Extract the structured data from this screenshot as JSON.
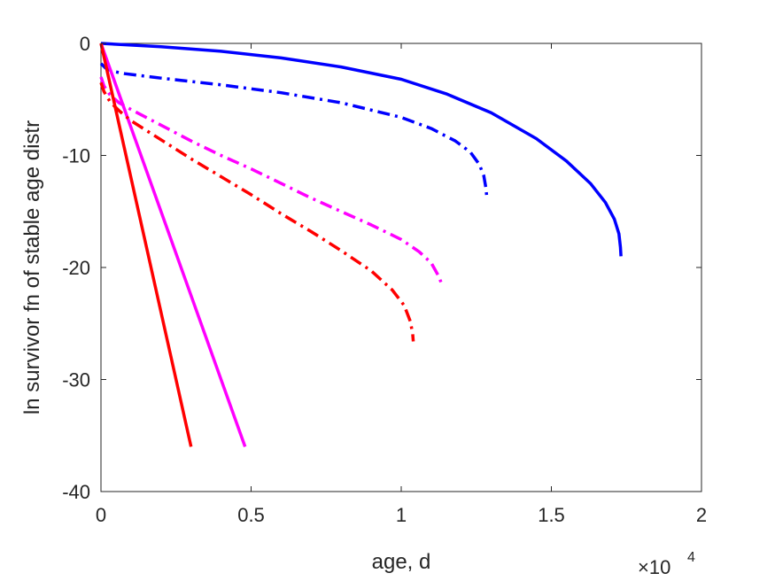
{
  "chart_data": {
    "type": "line",
    "xlabel": "age, d",
    "ylabel": "ln survivor fn of stable age distr",
    "x_exponent_label": {
      "base": "×10",
      "power": "4"
    },
    "xlim": [
      0,
      20000
    ],
    "ylim": [
      -40,
      0
    ],
    "x_ticks": [
      0,
      5000,
      10000,
      15000,
      20000
    ],
    "x_tick_labels": [
      "0",
      "0.5",
      "1",
      "1.5",
      "2"
    ],
    "y_ticks": [
      0,
      -10,
      -20,
      -30,
      -40
    ],
    "y_tick_labels": [
      "0",
      "-10",
      "-20",
      "-30",
      "-40"
    ],
    "grid": false,
    "series": [
      {
        "color": "#0000ff",
        "style": "solid",
        "x": [
          0,
          2000,
          4000,
          6000,
          8000,
          10000,
          11500,
          13000,
          14500,
          15500,
          16300,
          16800,
          17100,
          17250,
          17300,
          17320
        ],
        "y": [
          0,
          -0.3,
          -0.7,
          -1.3,
          -2.1,
          -3.2,
          -4.5,
          -6.2,
          -8.5,
          -10.5,
          -12.5,
          -14.2,
          -15.7,
          -17.0,
          -18.2,
          -19
        ]
      },
      {
        "color": "#0000ff",
        "style": "dashdot",
        "x": [
          0,
          150,
          400,
          800,
          2000,
          4000,
          6000,
          8000,
          10000,
          11000,
          11800,
          12300,
          12600,
          12750,
          12820,
          12850
        ],
        "y": [
          -1.8,
          -2.2,
          -2.5,
          -2.7,
          -3.1,
          -3.7,
          -4.4,
          -5.3,
          -6.6,
          -7.6,
          -8.7,
          -9.7,
          -10.8,
          -11.8,
          -12.9,
          -13.7
        ]
      },
      {
        "color": "#ff00ff",
        "style": "solid",
        "x": [
          0,
          4800
        ],
        "y": [
          0,
          -36
        ]
      },
      {
        "color": "#ff00ff",
        "style": "dashdot",
        "x": [
          0,
          100,
          300,
          600,
          1000,
          2000,
          3000,
          4000,
          5000,
          6000,
          7000,
          8000,
          9000,
          10000,
          10600,
          11000,
          11250,
          11350
        ],
        "y": [
          -3.0,
          -3.8,
          -4.6,
          -5.3,
          -5.9,
          -7.3,
          -8.7,
          -10.0,
          -11.2,
          -12.5,
          -13.8,
          -15.0,
          -16.2,
          -17.5,
          -18.6,
          -19.6,
          -20.8,
          -21.5
        ]
      },
      {
        "color": "#ff0000",
        "style": "solid",
        "x": [
          0,
          3000
        ],
        "y": [
          0,
          -36
        ]
      },
      {
        "color": "#ff0000",
        "style": "dashdot",
        "x": [
          0,
          100,
          300,
          600,
          1000,
          2000,
          3000,
          4000,
          5000,
          6000,
          7000,
          8000,
          9000,
          9700,
          10100,
          10300,
          10380,
          10400
        ],
        "y": [
          -3.5,
          -4.3,
          -5.2,
          -6.0,
          -6.9,
          -8.6,
          -10.3,
          -11.9,
          -13.5,
          -15.2,
          -16.8,
          -18.5,
          -20.3,
          -22.0,
          -23.4,
          -24.8,
          -25.9,
          -26.6
        ]
      }
    ]
  }
}
